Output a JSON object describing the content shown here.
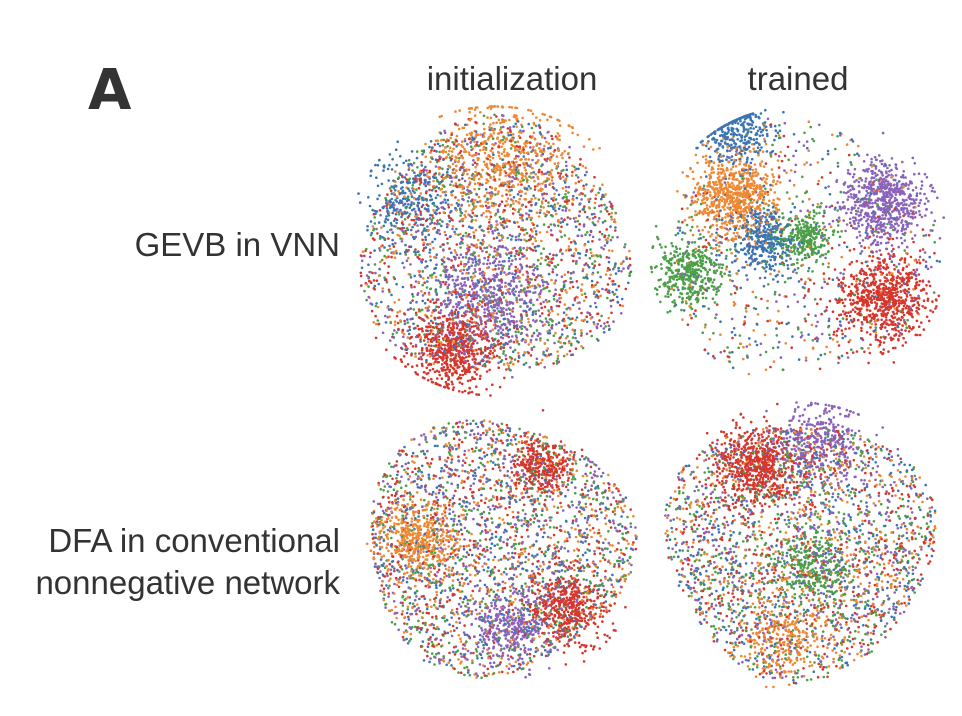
{
  "panel_label": "A",
  "columns": [
    "initialization",
    "trained"
  ],
  "rows": [
    {
      "label_lines": [
        "GEVB in VNN"
      ]
    },
    {
      "label_lines": [
        "DFA in conventional",
        "nonnegative network"
      ]
    }
  ],
  "colors": {
    "blue": "#3a74b2",
    "orange": "#ee8833",
    "green": "#4d9e49",
    "red": "#d6362c",
    "purple": "#8a62b9"
  },
  "plots": [
    {
      "row": 0,
      "col": 0,
      "clusters": [
        {
          "color": "red",
          "center": [
            0.35,
            0.85
          ],
          "spread": 0.08,
          "share": 0.14
        },
        {
          "color": "purple",
          "center": [
            0.48,
            0.66
          ],
          "spread": 0.1,
          "share": 0.12
        },
        {
          "color": "orange",
          "center": [
            0.52,
            0.18
          ],
          "spread": 0.12,
          "share": 0.12
        },
        {
          "color": "blue",
          "center": [
            0.2,
            0.3
          ],
          "spread": 0.08,
          "share": 0.06
        }
      ]
    },
    {
      "row": 0,
      "col": 1,
      "clusters": [
        {
          "color": "orange",
          "center": [
            0.27,
            0.3
          ],
          "spread": 0.07,
          "share": 0.16
        },
        {
          "color": "purple",
          "center": [
            0.8,
            0.33
          ],
          "spread": 0.07,
          "share": 0.16
        },
        {
          "color": "red",
          "center": [
            0.8,
            0.67
          ],
          "spread": 0.08,
          "share": 0.17
        },
        {
          "color": "green",
          "center": [
            0.12,
            0.58
          ],
          "spread": 0.06,
          "share": 0.1
        },
        {
          "color": "green",
          "center": [
            0.52,
            0.45
          ],
          "spread": 0.05,
          "share": 0.07
        },
        {
          "color": "blue",
          "center": [
            0.38,
            0.46
          ],
          "spread": 0.06,
          "share": 0.09
        },
        {
          "color": "blue",
          "center": [
            0.28,
            0.08
          ],
          "spread": 0.06,
          "share": 0.07
        }
      ]
    },
    {
      "row": 1,
      "col": 0,
      "clusters": [
        {
          "color": "orange",
          "center": [
            0.22,
            0.48
          ],
          "spread": 0.07,
          "share": 0.1
        },
        {
          "color": "red",
          "center": [
            0.66,
            0.22
          ],
          "spread": 0.05,
          "share": 0.08
        },
        {
          "color": "red",
          "center": [
            0.75,
            0.72
          ],
          "spread": 0.07,
          "share": 0.1
        },
        {
          "color": "purple",
          "center": [
            0.55,
            0.8
          ],
          "spread": 0.07,
          "share": 0.08
        }
      ]
    },
    {
      "row": 1,
      "col": 1,
      "clusters": [
        {
          "color": "red",
          "center": [
            0.35,
            0.2
          ],
          "spread": 0.07,
          "share": 0.14
        },
        {
          "color": "purple",
          "center": [
            0.58,
            0.12
          ],
          "spread": 0.08,
          "share": 0.08
        },
        {
          "color": "green",
          "center": [
            0.55,
            0.58
          ],
          "spread": 0.07,
          "share": 0.08
        },
        {
          "color": "orange",
          "center": [
            0.45,
            0.82
          ],
          "spread": 0.07,
          "share": 0.06
        }
      ]
    }
  ]
}
